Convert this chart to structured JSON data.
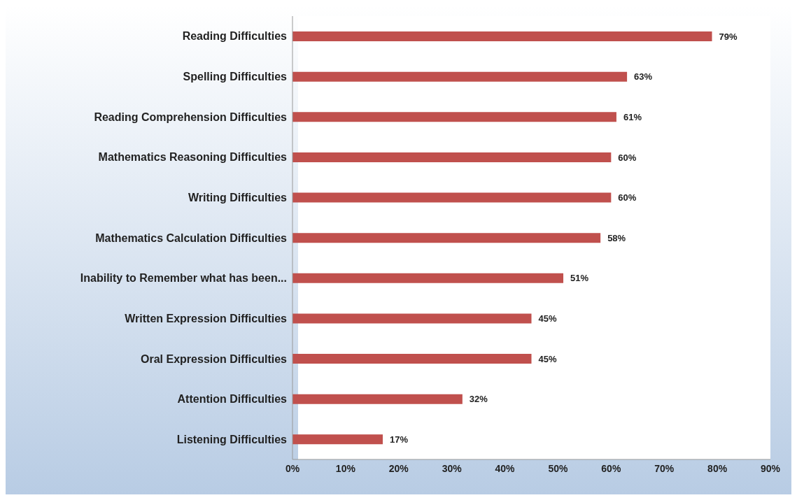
{
  "chart_data": {
    "type": "bar",
    "orientation": "horizontal",
    "categories": [
      "Reading Difficulties",
      "Spelling Difficulties",
      "Reading Comprehension Difficulties",
      "Mathematics Reasoning Difficulties",
      "Writing Difficulties",
      "Mathematics Calculation Difficulties",
      "Inability to Remember what has been...",
      "Written Expression Difficulties",
      "Oral Expression Difficulties",
      "Attention Difficulties",
      "Listening Difficulties"
    ],
    "values": [
      79,
      63,
      61,
      60,
      60,
      58,
      51,
      45,
      45,
      32,
      17
    ],
    "value_labels": [
      "79%",
      "63%",
      "61%",
      "60%",
      "60%",
      "58%",
      "51%",
      "45%",
      "45%",
      "32%",
      "17%"
    ],
    "color": "#c0504d",
    "xlim": [
      0,
      90
    ],
    "xticks": [
      {
        "value": 0,
        "label": "0%"
      },
      {
        "value": 10,
        "label": "10%"
      },
      {
        "value": 20,
        "label": "20%"
      },
      {
        "value": 30,
        "label": "30%"
      },
      {
        "value": 40,
        "label": "40%"
      },
      {
        "value": 50,
        "label": "50%"
      },
      {
        "value": 60,
        "label": "60%"
      },
      {
        "value": 70,
        "label": "70%"
      },
      {
        "value": 80,
        "label": "80%"
      },
      {
        "value": 90,
        "label": "90%"
      }
    ],
    "grid": false,
    "legend": false
  }
}
